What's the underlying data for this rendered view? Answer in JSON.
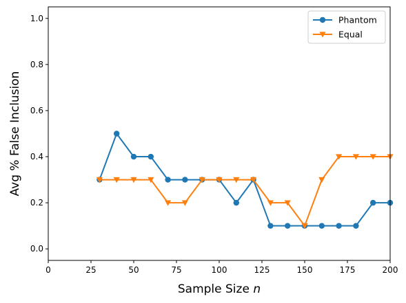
{
  "chart_data": {
    "type": "line",
    "title": "",
    "xlabel": "Sample Size",
    "xlabel_var": "n",
    "ylabel": "Avg % False Inclusion",
    "xlim": [
      0,
      200
    ],
    "ylim": [
      -0.05,
      1.05
    ],
    "xticks": [
      "0",
      "25",
      "50",
      "75",
      "100",
      "125",
      "150",
      "175",
      "200"
    ],
    "yticks": [
      "0.0",
      "0.2",
      "0.4",
      "0.6",
      "0.8",
      "1.0"
    ],
    "grid": false,
    "legend_position": "upper-right",
    "x": [
      30,
      40,
      50,
      60,
      70,
      80,
      90,
      100,
      110,
      120,
      130,
      140,
      150,
      160,
      170,
      180,
      190,
      200
    ],
    "series": [
      {
        "name": "Phantom",
        "color": "#1f77b4",
        "marker": "circle",
        "values": [
          0.3,
          0.5,
          0.4,
          0.4,
          0.3,
          0.3,
          0.3,
          0.3,
          0.2,
          0.3,
          0.1,
          0.1,
          0.1,
          0.1,
          0.1,
          0.1,
          0.2,
          0.2
        ]
      },
      {
        "name": "Equal",
        "color": "#ff7f0e",
        "marker": "triangle-down",
        "values": [
          0.3,
          0.3,
          0.3,
          0.3,
          0.2,
          0.2,
          0.3,
          0.3,
          0.3,
          0.3,
          0.2,
          0.2,
          0.1,
          0.3,
          0.4,
          0.4,
          0.4,
          0.4
        ]
      }
    ]
  }
}
